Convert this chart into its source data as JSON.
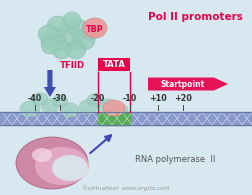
{
  "bg_color": "#d8e8f0",
  "title": "Pol II promoters",
  "title_color": "#e8004a",
  "title_fontsize": 7.5,
  "tfiid_label": "TFIID",
  "tfiid_color": "#e8004a",
  "tbp_label": "TBP",
  "tbp_color": "#e8004a",
  "tata_label": "TATA",
  "tata_color": "#e8004a",
  "startpoint_label": "Startpoint",
  "startpoint_color": "#e8004a",
  "tick_labels": [
    "-40",
    "-30",
    "-20",
    "-10",
    "+10",
    "+20"
  ],
  "tick_color": "#333333",
  "rna_pol_label": "RNA polymerase  II",
  "rna_pol_color": "#555555",
  "footer": "©virtualtext  www.ergito.com",
  "footer_color": "#999999",
  "dna_blue": "#8899cc",
  "dna_green": "#55aa55",
  "arrow_blue": "#4444bb",
  "tbp_green": "#99ccbb",
  "tbp_pink": "#ee9999",
  "pol_pink_dark": "#cc7799",
  "pol_pink_light": "#e8b0c8",
  "pol_inner": "#f0d0dc"
}
